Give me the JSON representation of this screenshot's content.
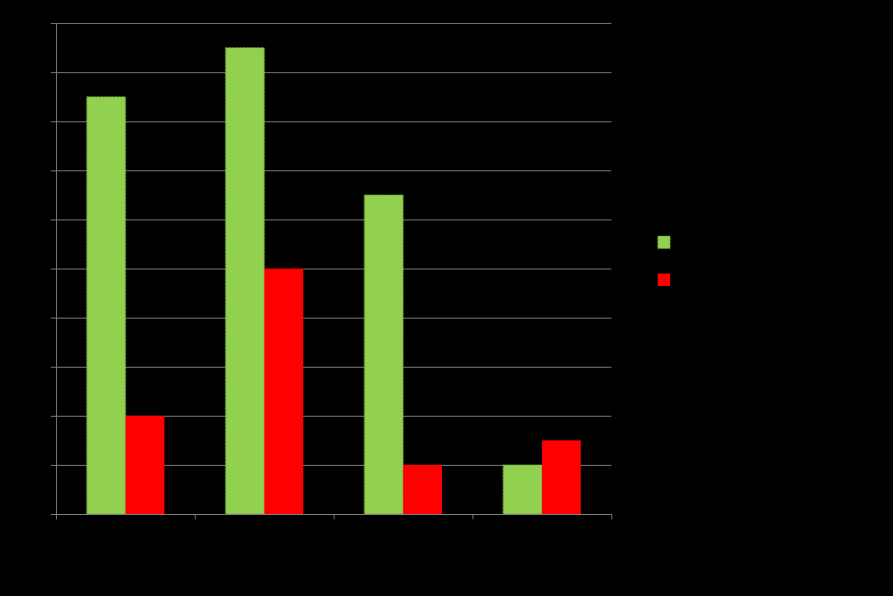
{
  "chart_data": {
    "type": "bar",
    "categories": [
      "",
      "",
      "",
      ""
    ],
    "series": [
      {
        "values": [
          8.5,
          9.5,
          6.5,
          1
        ],
        "color": "#92d050"
      },
      {
        "values": [
          2,
          5,
          1,
          1.5
        ],
        "color": "#ff0000"
      }
    ],
    "ylim": [
      0,
      10
    ],
    "grid": true,
    "legend_position": "right",
    "background": "#000000",
    "gridline_color": "#808080",
    "axis_color": "#808080"
  }
}
